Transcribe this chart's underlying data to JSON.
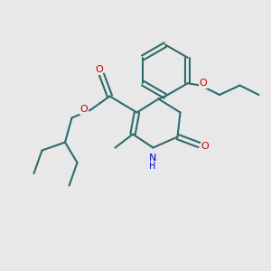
{
  "background_color": "#e8e8e8",
  "bond_color": "#2d6b6b",
  "oxygen_color": "#cc0000",
  "nitrogen_color": "#0000cc",
  "line_width": 1.5,
  "figsize": [
    3.0,
    3.0
  ],
  "dpi": 100,
  "xlim": [
    0,
    10
  ],
  "ylim": [
    0,
    10
  ]
}
